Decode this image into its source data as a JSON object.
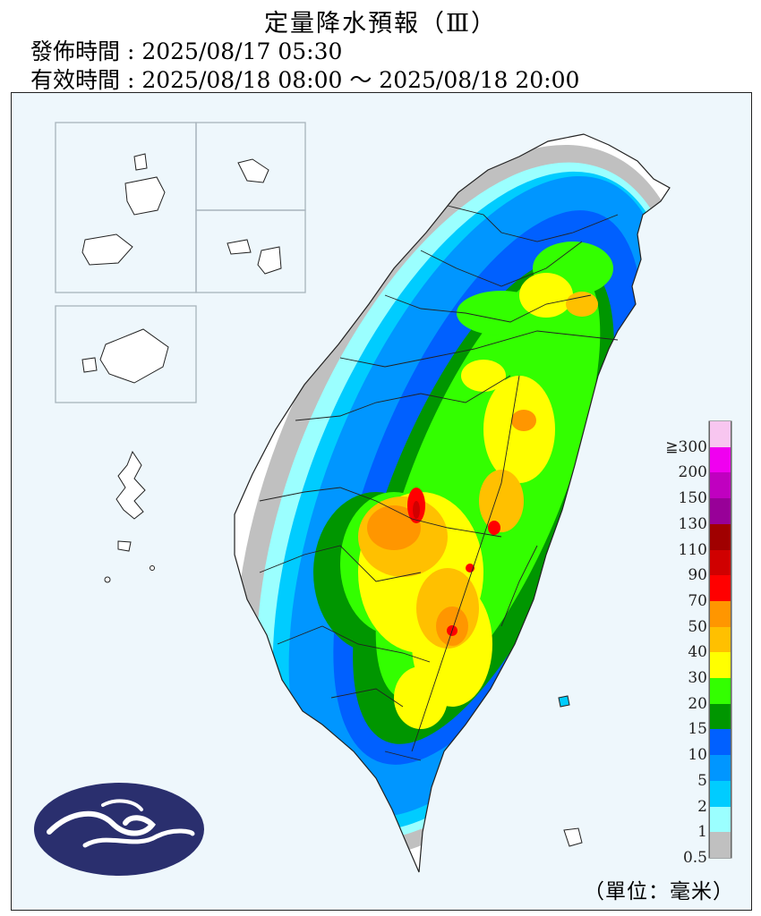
{
  "header": {
    "title": "定量降水預報（Ⅲ）",
    "issue_line": "發佈時間 : 2025/08/17 05:30",
    "valid_line": "有效時間 : 2025/08/18 08:00 ～ 2025/08/18 20:00"
  },
  "legend": {
    "unit": "（單位：毫米）",
    "levels": [
      {
        "label": "≧300",
        "color": "#f8c6f0"
      },
      {
        "label": "200",
        "color": "#f000f0"
      },
      {
        "label": "150",
        "color": "#c000c0"
      },
      {
        "label": "130",
        "color": "#980098"
      },
      {
        "label": "110",
        "color": "#a00000"
      },
      {
        "label": "90",
        "color": "#d00000"
      },
      {
        "label": "70",
        "color": "#ff0000"
      },
      {
        "label": "50",
        "color": "#ff9600"
      },
      {
        "label": "40",
        "color": "#ffc000"
      },
      {
        "label": "30",
        "color": "#ffff00"
      },
      {
        "label": "20",
        "color": "#33ff00"
      },
      {
        "label": "15",
        "color": "#009600"
      },
      {
        "label": "10",
        "color": "#0060ff"
      },
      {
        "label": "5",
        "color": "#0096ff"
      },
      {
        "label": "2",
        "color": "#00ccff"
      },
      {
        "label": "1",
        "color": "#9bffff"
      },
      {
        "label": "0.5",
        "color": "#c0c0c0"
      }
    ]
  }
}
